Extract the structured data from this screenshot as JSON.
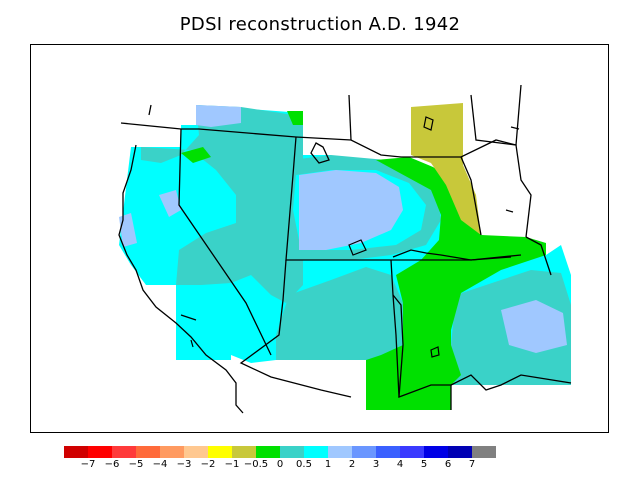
{
  "title": "PDSI reconstruction A.D. 1942",
  "legend": {
    "colors": [
      "#d00000",
      "#ff0000",
      "#ff3a3a",
      "#ff6a3a",
      "#ff9a60",
      "#ffc890",
      "#ffff00",
      "#c8c83a",
      "#00e000",
      "#3ad2c8",
      "#00ffff",
      "#a0c8ff",
      "#6a96ff",
      "#3a60ff",
      "#3a3aff",
      "#0000e6",
      "#0000b4",
      "#808080"
    ],
    "labels": [
      "−7",
      "−6",
      "−5",
      "−4",
      "−3",
      "−2",
      "−1",
      "−0.5",
      "0",
      "0.5",
      "1",
      "2",
      "3",
      "4",
      "5",
      "6",
      "7"
    ]
  },
  "map": {
    "field_colors": {
      "olive": "#c8c83a",
      "green": "#00e000",
      "teal": "#3ad2c8",
      "cyan": "#00ffff",
      "light_blue": "#a0c8ff"
    }
  }
}
